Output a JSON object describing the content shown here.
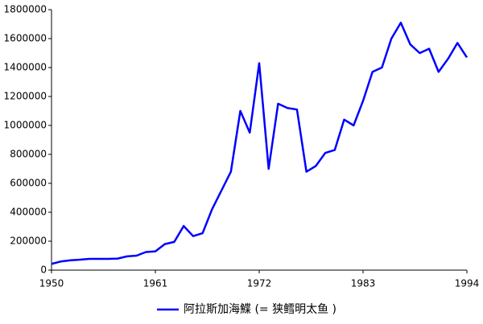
{
  "chart_data": {
    "type": "line",
    "x": [
      1950,
      1951,
      1952,
      1953,
      1954,
      1955,
      1956,
      1957,
      1958,
      1959,
      1960,
      1961,
      1962,
      1963,
      1964,
      1965,
      1966,
      1967,
      1968,
      1969,
      1970,
      1971,
      1972,
      1973,
      1974,
      1975,
      1976,
      1977,
      1978,
      1979,
      1980,
      1981,
      1982,
      1983,
      1984,
      1985,
      1986,
      1987,
      1988,
      1989,
      1990,
      1991,
      1992,
      1993,
      1994
    ],
    "series": [
      {
        "name": "阿拉斯加海鰈 (= 狭鳕明太鱼 )",
        "color": "#0000ff",
        "values": [
          43000,
          60000,
          68000,
          72000,
          78000,
          78000,
          78000,
          80000,
          95000,
          100000,
          125000,
          130000,
          180000,
          195000,
          305000,
          235000,
          255000,
          420000,
          550000,
          680000,
          1100000,
          950000,
          1430000,
          700000,
          1150000,
          1120000,
          1110000,
          680000,
          720000,
          810000,
          830000,
          1040000,
          1000000,
          1170000,
          1370000,
          1400000,
          1600000,
          1710000,
          1560000,
          1500000,
          1530000,
          1370000,
          1460000,
          1570000,
          1470000
        ]
      }
    ],
    "xlim": [
      1950,
      1994
    ],
    "xticks": [
      1950,
      1961,
      1972,
      1983,
      1994
    ],
    "ylim": [
      0,
      1800000
    ],
    "yticks": [
      0,
      200000,
      400000,
      600000,
      800000,
      1000000,
      1200000,
      1400000,
      1600000,
      1800000
    ],
    "legend": "bottom"
  }
}
